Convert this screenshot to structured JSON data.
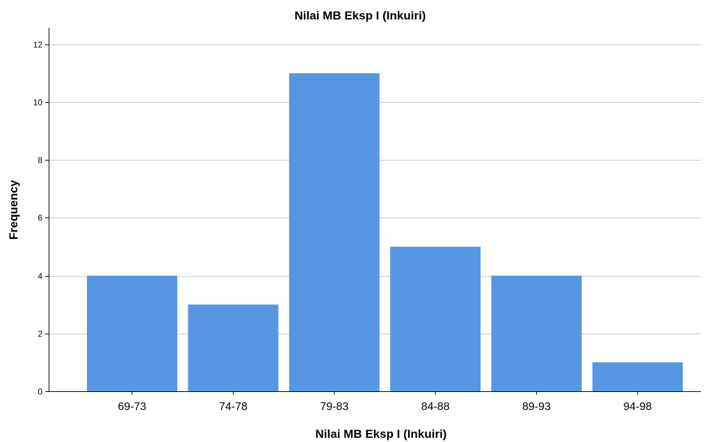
{
  "chart_data": {
    "type": "bar",
    "title": "Nilai MB Eksp I (Inkuiri)",
    "xlabel": "Nilai MB Eksp I (Inkuiri)",
    "ylabel": "Frequency",
    "categories": [
      "69-73",
      "74-78",
      "79-83",
      "84-88",
      "89-93",
      "94-98"
    ],
    "values": [
      4,
      3,
      11,
      5,
      4,
      1
    ],
    "ylim": [
      0,
      12
    ],
    "yticks": [
      "0",
      "2",
      "4",
      "6",
      "8",
      "10",
      "12"
    ],
    "grid": true,
    "bar_color": "#5796e3",
    "grid_color": "#c9c9c9"
  }
}
